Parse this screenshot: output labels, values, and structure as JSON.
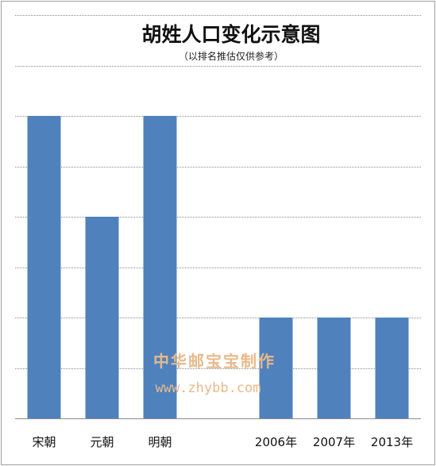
{
  "chart_data": {
    "type": "bar",
    "title": "胡姓人口变化示意图",
    "subtitle": "（以排名推估仅供参考）",
    "categories": [
      "宋朝",
      "元朝",
      "明朝",
      "",
      "2006年",
      "2007年",
      "2013年"
    ],
    "values": [
      6,
      4,
      6,
      null,
      2,
      2,
      2
    ],
    "ylim": [
      0,
      8
    ],
    "ystep": 1,
    "grid": true,
    "bar_color": "#4f81bd",
    "grid_color": "#8c8c8c"
  },
  "watermark": {
    "line1": "中华邮宝宝制作",
    "line2": "www.zhybb.com"
  }
}
